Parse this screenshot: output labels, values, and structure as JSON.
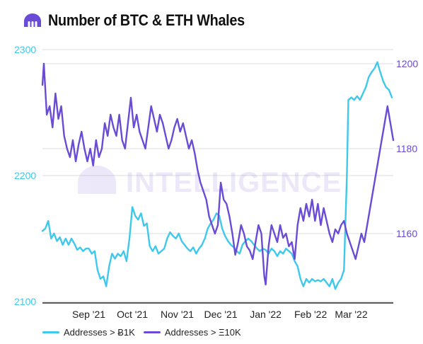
{
  "title": "Number of BTC & ETH Whales",
  "watermark": "INTELLIGENCE",
  "colors": {
    "btc": "#3ec9ec",
    "eth": "#6a4bd6",
    "grid": "#dddddd",
    "axis": "#222222",
    "title": "#111111"
  },
  "chart_data": {
    "type": "line",
    "x_labels": [
      "Sep '21",
      "Oct '21",
      "Nov '21",
      "Dec '21",
      "Jan '22",
      "Feb '22",
      "Mar '22"
    ],
    "x_range": [
      "2021-08-01",
      "2022-03-31"
    ],
    "y_left": {
      "ticks": [
        "2300",
        "2200",
        "2100"
      ],
      "ylim": [
        2100,
        2300
      ]
    },
    "y_right": {
      "ticks": [
        "1200",
        "1180",
        "1160"
      ],
      "ylim": [
        1145,
        1202
      ]
    },
    "grid": true,
    "legend_position": "bottom-left",
    "series": [
      {
        "name": "Addresses > Ƀ1K",
        "axis": "left",
        "color": "#3ec9ec",
        "points": [
          [
            "2021-08-01",
            2156
          ],
          [
            "2021-08-03",
            2158
          ],
          [
            "2021-08-05",
            2164
          ],
          [
            "2021-08-07",
            2150
          ],
          [
            "2021-08-09",
            2154
          ],
          [
            "2021-08-11",
            2148
          ],
          [
            "2021-08-13",
            2151
          ],
          [
            "2021-08-15",
            2145
          ],
          [
            "2021-08-17",
            2150
          ],
          [
            "2021-08-19",
            2145
          ],
          [
            "2021-08-21",
            2150
          ],
          [
            "2021-08-23",
            2146
          ],
          [
            "2021-08-25",
            2141
          ],
          [
            "2021-08-27",
            2143
          ],
          [
            "2021-08-29",
            2140
          ],
          [
            "2021-08-31",
            2142
          ],
          [
            "2021-09-02",
            2142
          ],
          [
            "2021-09-04",
            2138
          ],
          [
            "2021-09-06",
            2140
          ],
          [
            "2021-09-08",
            2125
          ],
          [
            "2021-09-10",
            2118
          ],
          [
            "2021-09-12",
            2120
          ],
          [
            "2021-09-14",
            2112
          ],
          [
            "2021-09-16",
            2128
          ],
          [
            "2021-09-18",
            2138
          ],
          [
            "2021-09-20",
            2134
          ],
          [
            "2021-09-22",
            2138
          ],
          [
            "2021-09-24",
            2136
          ],
          [
            "2021-09-26",
            2140
          ],
          [
            "2021-09-28",
            2132
          ],
          [
            "2021-09-30",
            2150
          ],
          [
            "2021-10-02",
            2175
          ],
          [
            "2021-10-04",
            2168
          ],
          [
            "2021-10-06",
            2165
          ],
          [
            "2021-10-08",
            2170
          ],
          [
            "2021-10-10",
            2160
          ],
          [
            "2021-10-12",
            2162
          ],
          [
            "2021-10-14",
            2144
          ],
          [
            "2021-10-16",
            2140
          ],
          [
            "2021-10-18",
            2144
          ],
          [
            "2021-10-20",
            2138
          ],
          [
            "2021-10-22",
            2140
          ],
          [
            "2021-10-24",
            2142
          ],
          [
            "2021-10-26",
            2150
          ],
          [
            "2021-10-28",
            2155
          ],
          [
            "2021-10-30",
            2152
          ],
          [
            "2021-11-01",
            2150
          ],
          [
            "2021-11-03",
            2154
          ],
          [
            "2021-11-05",
            2148
          ],
          [
            "2021-11-07",
            2145
          ],
          [
            "2021-11-09",
            2142
          ],
          [
            "2021-11-11",
            2140
          ],
          [
            "2021-11-13",
            2143
          ],
          [
            "2021-11-15",
            2138
          ],
          [
            "2021-11-17",
            2142
          ],
          [
            "2021-11-19",
            2145
          ],
          [
            "2021-11-21",
            2150
          ],
          [
            "2021-11-23",
            2158
          ],
          [
            "2021-11-25",
            2162
          ],
          [
            "2021-11-27",
            2165
          ],
          [
            "2021-11-29",
            2170
          ],
          [
            "2021-12-01",
            2168
          ],
          [
            "2021-12-03",
            2158
          ],
          [
            "2021-12-05",
            2152
          ],
          [
            "2021-12-07",
            2148
          ],
          [
            "2021-12-09",
            2145
          ],
          [
            "2021-12-11",
            2143
          ],
          [
            "2021-12-13",
            2140
          ],
          [
            "2021-12-15",
            2138
          ],
          [
            "2021-12-17",
            2145
          ],
          [
            "2021-12-19",
            2148
          ],
          [
            "2021-12-21",
            2150
          ],
          [
            "2021-12-23",
            2148
          ],
          [
            "2021-12-25",
            2145
          ],
          [
            "2021-12-27",
            2142
          ],
          [
            "2021-12-29",
            2140
          ],
          [
            "2021-12-31",
            2142
          ],
          [
            "2022-01-02",
            2141
          ],
          [
            "2022-01-04",
            2138
          ],
          [
            "2022-01-06",
            2142
          ],
          [
            "2022-01-08",
            2140
          ],
          [
            "2022-01-10",
            2136
          ],
          [
            "2022-01-12",
            2140
          ],
          [
            "2022-01-14",
            2138
          ],
          [
            "2022-01-16",
            2142
          ],
          [
            "2022-01-18",
            2140
          ],
          [
            "2022-01-20",
            2138
          ],
          [
            "2022-01-22",
            2132
          ],
          [
            "2022-01-24",
            2128
          ],
          [
            "2022-01-26",
            2118
          ],
          [
            "2022-01-28",
            2112
          ],
          [
            "2022-01-30",
            2118
          ],
          [
            "2022-02-01",
            2115
          ],
          [
            "2022-02-03",
            2118
          ],
          [
            "2022-02-05",
            2116
          ],
          [
            "2022-02-07",
            2117
          ],
          [
            "2022-02-09",
            2116
          ],
          [
            "2022-02-11",
            2118
          ],
          [
            "2022-02-13",
            2115
          ],
          [
            "2022-02-15",
            2112
          ],
          [
            "2022-02-17",
            2118
          ],
          [
            "2022-02-19",
            2110
          ],
          [
            "2022-02-21",
            2115
          ],
          [
            "2022-02-23",
            2118
          ],
          [
            "2022-02-25",
            2125
          ],
          [
            "2022-02-27",
            2200
          ],
          [
            "2022-02-28",
            2260
          ],
          [
            "2022-03-02",
            2262
          ],
          [
            "2022-03-04",
            2260
          ],
          [
            "2022-03-06",
            2263
          ],
          [
            "2022-03-08",
            2260
          ],
          [
            "2022-03-10",
            2265
          ],
          [
            "2022-03-12",
            2270
          ],
          [
            "2022-03-14",
            2278
          ],
          [
            "2022-03-16",
            2282
          ],
          [
            "2022-03-18",
            2285
          ],
          [
            "2022-03-20",
            2290
          ],
          [
            "2022-03-22",
            2282
          ],
          [
            "2022-03-24",
            2275
          ],
          [
            "2022-03-26",
            2270
          ],
          [
            "2022-03-28",
            2268
          ],
          [
            "2022-03-30",
            2262
          ]
        ]
      },
      {
        "name": "Addresses > Ξ10K",
        "axis": "right",
        "color": "#6a4bd6",
        "points": [
          [
            "2021-08-01",
            1195
          ],
          [
            "2021-08-02",
            1200
          ],
          [
            "2021-08-04",
            1188
          ],
          [
            "2021-08-06",
            1190
          ],
          [
            "2021-08-08",
            1185
          ],
          [
            "2021-08-10",
            1193
          ],
          [
            "2021-08-12",
            1187
          ],
          [
            "2021-08-14",
            1190
          ],
          [
            "2021-08-16",
            1183
          ],
          [
            "2021-08-18",
            1180
          ],
          [
            "2021-08-20",
            1178
          ],
          [
            "2021-08-22",
            1182
          ],
          [
            "2021-08-24",
            1177
          ],
          [
            "2021-08-26",
            1181
          ],
          [
            "2021-08-28",
            1184
          ],
          [
            "2021-08-30",
            1180
          ],
          [
            "2021-09-01",
            1177
          ],
          [
            "2021-09-03",
            1180
          ],
          [
            "2021-09-05",
            1176
          ],
          [
            "2021-09-07",
            1182
          ],
          [
            "2021-09-09",
            1178
          ],
          [
            "2021-09-11",
            1180
          ],
          [
            "2021-09-13",
            1186
          ],
          [
            "2021-09-15",
            1183
          ],
          [
            "2021-09-17",
            1188
          ],
          [
            "2021-09-19",
            1185
          ],
          [
            "2021-09-21",
            1183
          ],
          [
            "2021-09-23",
            1188
          ],
          [
            "2021-09-25",
            1182
          ],
          [
            "2021-09-27",
            1180
          ],
          [
            "2021-09-29",
            1186
          ],
          [
            "2021-10-01",
            1192
          ],
          [
            "2021-10-03",
            1185
          ],
          [
            "2021-10-05",
            1188
          ],
          [
            "2021-10-07",
            1184
          ],
          [
            "2021-10-09",
            1182
          ],
          [
            "2021-10-11",
            1180
          ],
          [
            "2021-10-13",
            1185
          ],
          [
            "2021-10-15",
            1190
          ],
          [
            "2021-10-17",
            1187
          ],
          [
            "2021-10-19",
            1184
          ],
          [
            "2021-10-21",
            1188
          ],
          [
            "2021-10-23",
            1186
          ],
          [
            "2021-10-25",
            1183
          ],
          [
            "2021-10-27",
            1180
          ],
          [
            "2021-10-29",
            1182
          ],
          [
            "2021-10-31",
            1185
          ],
          [
            "2021-11-02",
            1187
          ],
          [
            "2021-11-04",
            1184
          ],
          [
            "2021-11-06",
            1186
          ],
          [
            "2021-11-08",
            1183
          ],
          [
            "2021-11-10",
            1180
          ],
          [
            "2021-11-12",
            1182
          ],
          [
            "2021-11-14",
            1179
          ],
          [
            "2021-11-16",
            1175
          ],
          [
            "2021-11-18",
            1172
          ],
          [
            "2021-11-20",
            1170
          ],
          [
            "2021-11-22",
            1168
          ],
          [
            "2021-11-24",
            1164
          ],
          [
            "2021-11-26",
            1162
          ],
          [
            "2021-11-28",
            1160
          ],
          [
            "2021-11-30",
            1162
          ],
          [
            "2021-12-02",
            1172
          ],
          [
            "2021-12-04",
            1168
          ],
          [
            "2021-12-06",
            1167
          ],
          [
            "2021-12-08",
            1164
          ],
          [
            "2021-12-10",
            1160
          ],
          [
            "2021-12-12",
            1155
          ],
          [
            "2021-12-14",
            1158
          ],
          [
            "2021-12-16",
            1162
          ],
          [
            "2021-12-18",
            1160
          ],
          [
            "2021-12-20",
            1157
          ],
          [
            "2021-12-22",
            1156
          ],
          [
            "2021-12-24",
            1154
          ],
          [
            "2021-12-26",
            1158
          ],
          [
            "2021-12-28",
            1162
          ],
          [
            "2021-12-30",
            1160
          ],
          [
            "2022-01-01",
            1150
          ],
          [
            "2022-01-02",
            1148
          ],
          [
            "2022-01-04",
            1157
          ],
          [
            "2022-01-06",
            1162
          ],
          [
            "2022-01-08",
            1160
          ],
          [
            "2022-01-10",
            1158
          ],
          [
            "2022-01-12",
            1162
          ],
          [
            "2022-01-14",
            1159
          ],
          [
            "2022-01-16",
            1160
          ],
          [
            "2022-01-18",
            1157
          ],
          [
            "2022-01-20",
            1158
          ],
          [
            "2022-01-22",
            1154
          ],
          [
            "2022-01-24",
            1162
          ],
          [
            "2022-01-26",
            1166
          ],
          [
            "2022-01-28",
            1163
          ],
          [
            "2022-01-30",
            1167
          ],
          [
            "2022-02-01",
            1164
          ],
          [
            "2022-02-03",
            1168
          ],
          [
            "2022-02-05",
            1163
          ],
          [
            "2022-02-07",
            1167
          ],
          [
            "2022-02-09",
            1162
          ],
          [
            "2022-02-11",
            1166
          ],
          [
            "2022-02-13",
            1163
          ],
          [
            "2022-02-15",
            1160
          ],
          [
            "2022-02-17",
            1158
          ],
          [
            "2022-02-19",
            1161
          ],
          [
            "2022-02-21",
            1160
          ],
          [
            "2022-02-23",
            1162
          ],
          [
            "2022-02-25",
            1163
          ],
          [
            "2022-02-27",
            1160
          ],
          [
            "2022-03-01",
            1158
          ],
          [
            "2022-03-03",
            1156
          ],
          [
            "2022-03-05",
            1154
          ],
          [
            "2022-03-07",
            1157
          ],
          [
            "2022-03-09",
            1160
          ],
          [
            "2022-03-11",
            1158
          ],
          [
            "2022-03-13",
            1162
          ],
          [
            "2022-03-15",
            1166
          ],
          [
            "2022-03-17",
            1170
          ],
          [
            "2022-03-19",
            1174
          ],
          [
            "2022-03-21",
            1178
          ],
          [
            "2022-03-23",
            1182
          ],
          [
            "2022-03-25",
            1186
          ],
          [
            "2022-03-27",
            1190
          ],
          [
            "2022-03-29",
            1186
          ],
          [
            "2022-03-31",
            1182
          ]
        ]
      }
    ]
  }
}
